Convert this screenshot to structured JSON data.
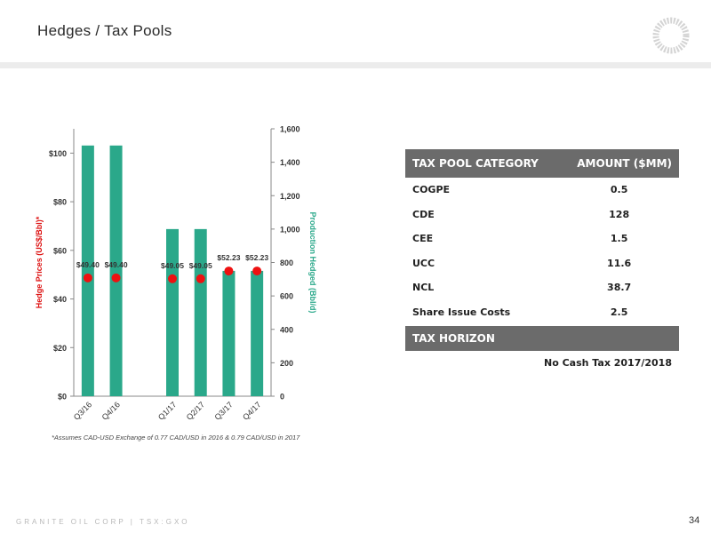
{
  "header": {
    "title": "Hedges / Tax Pools"
  },
  "footer": {
    "company": "GRANITE OIL CORP | TSX:GXO",
    "page": "34"
  },
  "footnote": "*Assumes CAD-USD Exchange of 0.77 CAD/USD in 2016 & 0.79 CAD/USD in 2017",
  "colors": {
    "bar": "#2aa88a",
    "point": "#ee1111",
    "left_axis_label": "#dd1111",
    "right_axis_label": "#2aa88a",
    "table_header": "#6b6b6b"
  },
  "chart_data": {
    "type": "bar",
    "categories": [
      "Q3/16",
      "Q4/16",
      "",
      "Q1/17",
      "Q2/17",
      "Q3/17",
      "Q4/17"
    ],
    "series": [
      {
        "axis": "right",
        "type": "bar",
        "values": [
          1500,
          1500,
          null,
          1000,
          1000,
          750,
          750
        ]
      },
      {
        "axis": "left",
        "type": "scatter",
        "values": [
          49.4,
          49.4,
          null,
          49.05,
          49.05,
          52.23,
          52.23
        ],
        "labels": [
          "$49.40",
          "$49.40",
          "",
          "$49.05",
          "$49.05",
          "$52.23",
          "$52.23"
        ]
      }
    ],
    "ylabel_left": "Hedge Prices (US$/Bbl)*",
    "ylabel_right": "Production Hedged (Bbl/d)",
    "ylim_left": [
      0,
      110
    ],
    "ylim_right": [
      0,
      1600
    ],
    "yticks_left": [
      "$0",
      "$20",
      "$40",
      "$60",
      "$80",
      "$100"
    ],
    "yticks_right": [
      "0",
      "200",
      "400",
      "600",
      "800",
      "1,000",
      "1,200",
      "1,400",
      "1,600"
    ],
    "grid": false
  },
  "tax_table": {
    "headers": {
      "category": "TAX POOL CATEGORY",
      "amount": "AMOUNT ($MM)"
    },
    "rows": [
      {
        "category": "COGPE",
        "amount": "0.5"
      },
      {
        "category": "CDE",
        "amount": "128"
      },
      {
        "category": "CEE",
        "amount": "1.5"
      },
      {
        "category": "UCC",
        "amount": "11.6"
      },
      {
        "category": "NCL",
        "amount": "38.7"
      },
      {
        "category": "Share Issue Costs",
        "amount": "2.5"
      }
    ],
    "horizon_label": "TAX HORIZON",
    "horizon_value": "No Cash Tax 2017/2018"
  }
}
